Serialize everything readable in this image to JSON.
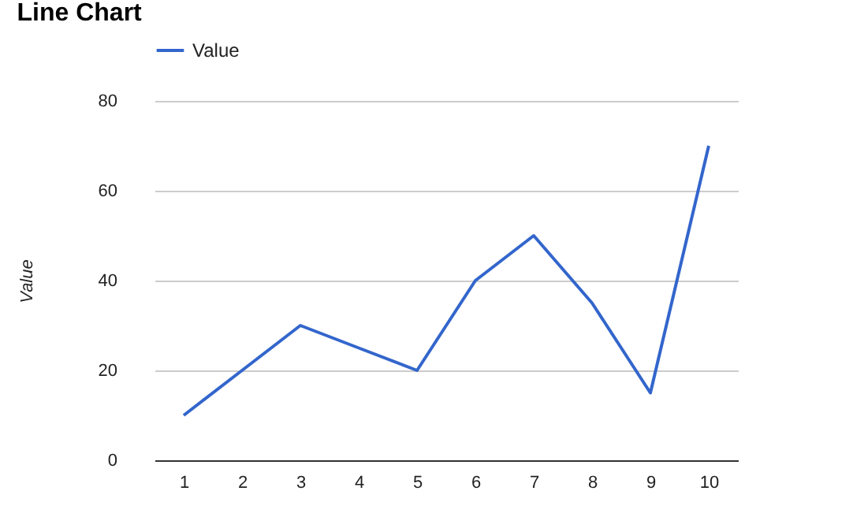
{
  "chart_data": {
    "type": "line",
    "title": "Line Chart",
    "ylabel": "Value",
    "categories": [
      "1",
      "2",
      "3",
      "4",
      "5",
      "6",
      "7",
      "8",
      "9",
      "10"
    ],
    "series": [
      {
        "name": "Value",
        "color": "#3366cc",
        "values": [
          10,
          20,
          30,
          25,
          20,
          40,
          50,
          35,
          15,
          70
        ]
      }
    ],
    "ylim": [
      0,
      80
    ],
    "yticks": [
      0,
      20,
      40,
      60,
      80
    ],
    "grid": "y",
    "legend": "top left",
    "marker": "none",
    "line_style": "solid"
  }
}
